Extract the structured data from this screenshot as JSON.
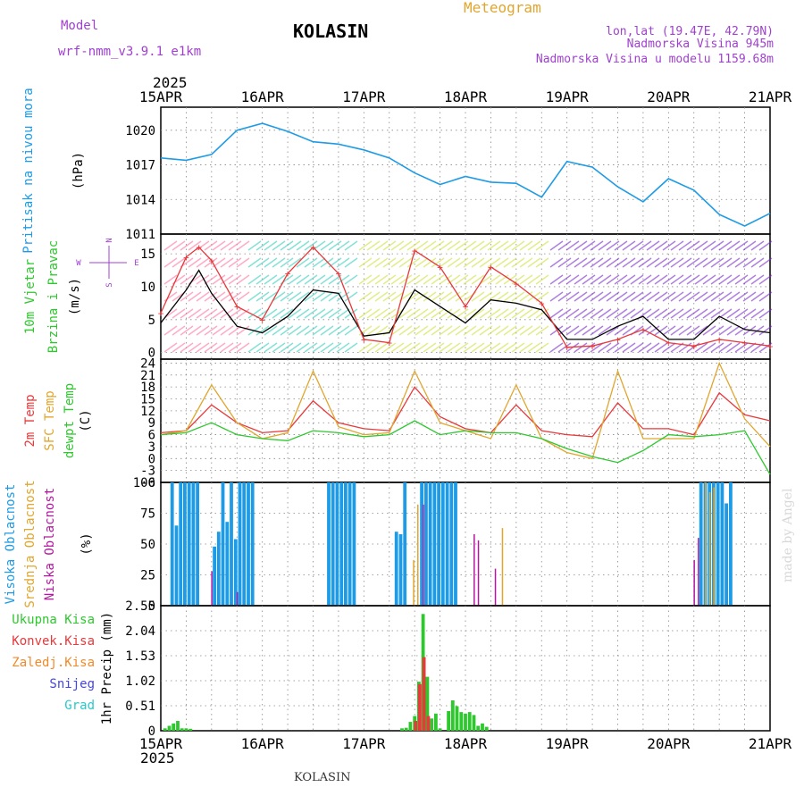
{
  "header": {
    "model_label": "Model",
    "model_name": "wrf-nmm_v3.9.1  e1km",
    "station": "KOLASIN",
    "chart_kind": "Meteogram",
    "coords": "lon,lat (19.47E, 42.79N)",
    "elev_real": "Nadmorska Visina 945m",
    "elev_model": "Nadmorska Visina u modelu 1159.68m",
    "footer_station": "KOLASIN",
    "watermark": "made by Angel"
  },
  "colors": {
    "pressure": "#1e9be6",
    "t2m": "#e8393b",
    "sfc": "#e0a62e",
    "dewpt": "#2ec82e",
    "high_cloud": "#1e9be6",
    "mid_cloud": "#e0a62e",
    "low_cloud": "#b4189e",
    "total_precip": "#2ec82e",
    "conv_precip": "#e8393b",
    "frozen": "#f08a2a",
    "snow": "#4545e0",
    "graupel": "#2ac8c8",
    "wind_speed": "#000000",
    "gust": "#e8393b",
    "purple_label": "#a040d0"
  },
  "chart_data": {
    "type": "line",
    "time_axis": {
      "year": "2025",
      "start": "2025-04-15T00:00",
      "end": "2025-04-21T00:00",
      "ticks": [
        "15APR",
        "16APR",
        "17APR",
        "18APR",
        "19APR",
        "20APR",
        "21APR"
      ]
    },
    "panels": [
      {
        "id": "pressure",
        "ylabels": [
          "Pritisak na nivou mora"
        ],
        "unit": "(hPa)",
        "ylim": [
          1011,
          1022
        ],
        "yticks": [
          1011,
          1014,
          1017,
          1020
        ],
        "series": [
          {
            "key": "pressure",
            "x": [
              "2025-04-15T00:00",
              "2025-04-15T06:00",
              "2025-04-15T12:00",
              "2025-04-15T18:00",
              "2025-04-16T00:00",
              "2025-04-16T06:00",
              "2025-04-16T12:00",
              "2025-04-16T18:00",
              "2025-04-17T00:00",
              "2025-04-17T06:00",
              "2025-04-17T12:00",
              "2025-04-17T18:00",
              "2025-04-18T00:00",
              "2025-04-18T06:00",
              "2025-04-18T12:00",
              "2025-04-18T18:00",
              "2025-04-19T00:00",
              "2025-04-19T06:00",
              "2025-04-19T12:00",
              "2025-04-19T18:00",
              "2025-04-20T00:00",
              "2025-04-20T06:00",
              "2025-04-20T12:00",
              "2025-04-20T18:00",
              "2025-04-21T00:00"
            ],
            "values": [
              1017.6,
              1017.4,
              1017.9,
              1020.0,
              1020.6,
              1019.9,
              1019.0,
              1018.8,
              1018.3,
              1017.6,
              1016.3,
              1015.3,
              1016.0,
              1015.5,
              1015.4,
              1014.2,
              1017.3,
              1016.8,
              1015.1,
              1013.8,
              1015.8,
              1014.8,
              1012.7,
              1011.7,
              1012.8
            ]
          }
        ]
      },
      {
        "id": "wind",
        "ylabels": [
          "10m Vjetar",
          "Brzina i Pravac"
        ],
        "unit": "(m/s)",
        "ylim": [
          -1,
          18
        ],
        "yticks": [
          0,
          5,
          10,
          15
        ],
        "compass": {
          "n": "N",
          "s": "S",
          "e": "E",
          "w": "W"
        },
        "series": [
          {
            "key": "wind_speed",
            "x": [
              "2025-04-15T00:00",
              "2025-04-15T06:00",
              "2025-04-15T09:00",
              "2025-04-15T12:00",
              "2025-04-15T18:00",
              "2025-04-16T00:00",
              "2025-04-16T06:00",
              "2025-04-16T12:00",
              "2025-04-16T18:00",
              "2025-04-17T00:00",
              "2025-04-17T06:00",
              "2025-04-17T12:00",
              "2025-04-17T18:00",
              "2025-04-18T00:00",
              "2025-04-18T06:00",
              "2025-04-18T12:00",
              "2025-04-18T18:00",
              "2025-04-19T00:00",
              "2025-04-19T06:00",
              "2025-04-19T12:00",
              "2025-04-19T18:00",
              "2025-04-20T00:00",
              "2025-04-20T06:00",
              "2025-04-20T12:00",
              "2025-04-20T18:00",
              "2025-04-21T00:00"
            ],
            "values": [
              4.5,
              9.5,
              12.5,
              9.0,
              4.0,
              3.0,
              5.5,
              9.5,
              9.0,
              2.5,
              3.0,
              9.5,
              7.0,
              4.5,
              8.0,
              7.5,
              6.5,
              2.0,
              2.0,
              4.0,
              5.5,
              2.0,
              2.0,
              5.5,
              3.5,
              3.0
            ]
          },
          {
            "key": "gust",
            "x": [
              "2025-04-15T00:00",
              "2025-04-15T06:00",
              "2025-04-15T09:00",
              "2025-04-15T12:00",
              "2025-04-15T18:00",
              "2025-04-16T00:00",
              "2025-04-16T06:00",
              "2025-04-16T12:00",
              "2025-04-16T18:00",
              "2025-04-17T00:00",
              "2025-04-17T06:00",
              "2025-04-17T12:00",
              "2025-04-17T18:00",
              "2025-04-18T00:00",
              "2025-04-18T06:00",
              "2025-04-18T12:00",
              "2025-04-18T18:00",
              "2025-04-19T00:00",
              "2025-04-19T06:00",
              "2025-04-19T12:00",
              "2025-04-19T18:00",
              "2025-04-20T00:00",
              "2025-04-20T06:00",
              "2025-04-20T12:00",
              "2025-04-20T18:00",
              "2025-04-21T00:00"
            ],
            "values": [
              6.0,
              14.5,
              16.0,
              14.0,
              7.0,
              5.0,
              12.0,
              16.0,
              12.0,
              2.0,
              1.5,
              15.5,
              13.0,
              7.0,
              13.0,
              10.5,
              7.5,
              0.8,
              1.0,
              2.0,
              3.5,
              1.5,
              1.0,
              2.0,
              1.5,
              1.0
            ]
          }
        ]
      },
      {
        "id": "temperature",
        "ylabels": [
          "2m Temp",
          "SFC Temp",
          "dewpt Temp"
        ],
        "unit": "(C)",
        "ylim": [
          -6,
          25
        ],
        "yticks": [
          -6,
          -3,
          0,
          3,
          6,
          9,
          12,
          15,
          18,
          21,
          24
        ],
        "series": [
          {
            "key": "t2m",
            "x": [
              "2025-04-15T00:00",
              "2025-04-15T06:00",
              "2025-04-15T12:00",
              "2025-04-15T18:00",
              "2025-04-16T00:00",
              "2025-04-16T06:00",
              "2025-04-16T12:00",
              "2025-04-16T18:00",
              "2025-04-17T00:00",
              "2025-04-17T06:00",
              "2025-04-17T12:00",
              "2025-04-17T18:00",
              "2025-04-18T00:00",
              "2025-04-18T06:00",
              "2025-04-18T12:00",
              "2025-04-18T18:00",
              "2025-04-19T00:00",
              "2025-04-19T06:00",
              "2025-04-19T12:00",
              "2025-04-19T18:00",
              "2025-04-20T00:00",
              "2025-04-20T06:00",
              "2025-04-20T12:00",
              "2025-04-20T18:00",
              "2025-04-21T00:00"
            ],
            "values": [
              6.5,
              7.0,
              13.5,
              9.0,
              6.5,
              7.0,
              14.5,
              9.0,
              7.5,
              7.0,
              18.0,
              10.5,
              7.5,
              6.5,
              13.5,
              7.0,
              6.0,
              5.5,
              14.0,
              7.5,
              7.5,
              6.0,
              16.5,
              11.0,
              9.5
            ]
          },
          {
            "key": "sfc",
            "x": [
              "2025-04-15T00:00",
              "2025-04-15T06:00",
              "2025-04-15T12:00",
              "2025-04-15T18:00",
              "2025-04-16T00:00",
              "2025-04-16T06:00",
              "2025-04-16T12:00",
              "2025-04-16T18:00",
              "2025-04-17T00:00",
              "2025-04-17T06:00",
              "2025-04-17T12:00",
              "2025-04-17T18:00",
              "2025-04-18T00:00",
              "2025-04-18T06:00",
              "2025-04-18T12:00",
              "2025-04-18T18:00",
              "2025-04-19T00:00",
              "2025-04-19T06:00",
              "2025-04-19T12:00",
              "2025-04-19T18:00",
              "2025-04-20T00:00",
              "2025-04-20T06:00",
              "2025-04-20T12:00",
              "2025-04-20T18:00",
              "2025-04-21T00:00"
            ],
            "values": [
              6.0,
              7.0,
              18.5,
              9.0,
              5.0,
              6.5,
              22.0,
              8.0,
              6.0,
              6.5,
              22.0,
              9.0,
              7.0,
              5.0,
              18.5,
              5.0,
              1.5,
              0.0,
              22.0,
              5.0,
              5.0,
              5.0,
              24.0,
              10.0,
              3.0
            ]
          },
          {
            "key": "dewpt",
            "x": [
              "2025-04-15T00:00",
              "2025-04-15T06:00",
              "2025-04-15T12:00",
              "2025-04-15T18:00",
              "2025-04-16T00:00",
              "2025-04-16T06:00",
              "2025-04-16T12:00",
              "2025-04-16T18:00",
              "2025-04-17T00:00",
              "2025-04-17T06:00",
              "2025-04-17T12:00",
              "2025-04-17T18:00",
              "2025-04-18T00:00",
              "2025-04-18T06:00",
              "2025-04-18T12:00",
              "2025-04-18T18:00",
              "2025-04-19T00:00",
              "2025-04-19T06:00",
              "2025-04-19T12:00",
              "2025-04-19T18:00",
              "2025-04-20T00:00",
              "2025-04-20T06:00",
              "2025-04-20T12:00",
              "2025-04-20T18:00",
              "2025-04-21T00:00"
            ],
            "values": [
              6.0,
              6.5,
              9.0,
              6.0,
              5.0,
              4.5,
              7.0,
              6.5,
              5.5,
              6.0,
              9.5,
              6.0,
              7.0,
              6.5,
              6.5,
              5.0,
              2.5,
              0.5,
              -1.0,
              2.0,
              6.0,
              5.5,
              6.0,
              7.0,
              -4.0
            ]
          }
        ]
      },
      {
        "id": "cloud",
        "ylabels": [
          "Visoka Oblacnost",
          "Srednja Oblacnost",
          "Niska Oblacnost"
        ],
        "unit": "(%)",
        "ylim": [
          0,
          100
        ],
        "yticks": [
          0,
          25,
          50,
          75,
          100
        ],
        "bars": [
          {
            "key": "high_cloud",
            "x": [
              "2025-04-15T03:00",
              "2025-04-15T04:00",
              "2025-04-15T05:00",
              "2025-04-15T06:00",
              "2025-04-15T07:00",
              "2025-04-15T08:00",
              "2025-04-15T09:00",
              "2025-04-15T13:00",
              "2025-04-15T14:00",
              "2025-04-15T15:00",
              "2025-04-15T16:00",
              "2025-04-15T17:00",
              "2025-04-15T18:00",
              "2025-04-15T19:00",
              "2025-04-15T20:00",
              "2025-04-15T21:00",
              "2025-04-15T22:00",
              "2025-04-16T16:00",
              "2025-04-16T17:00",
              "2025-04-16T18:00",
              "2025-04-16T19:00",
              "2025-04-16T20:00",
              "2025-04-16T21:00",
              "2025-04-16T22:00",
              "2025-04-17T08:00",
              "2025-04-17T09:00",
              "2025-04-17T10:00",
              "2025-04-17T14:00",
              "2025-04-17T15:00",
              "2025-04-17T16:00",
              "2025-04-17T17:00",
              "2025-04-17T18:00",
              "2025-04-17T19:00",
              "2025-04-17T20:00",
              "2025-04-17T21:00",
              "2025-04-17T22:00",
              "2025-04-20T08:00",
              "2025-04-20T09:00",
              "2025-04-20T10:00",
              "2025-04-20T11:00",
              "2025-04-20T12:00",
              "2025-04-20T13:00",
              "2025-04-20T14:00",
              "2025-04-20T15:00"
            ],
            "values": [
              100,
              65,
              100,
              100,
              100,
              100,
              100,
              48,
              60,
              100,
              68,
              100,
              54,
              100,
              100,
              100,
              100,
              100,
              100,
              100,
              100,
              100,
              100,
              100,
              60,
              58,
              100,
              100,
              100,
              100,
              100,
              100,
              100,
              100,
              100,
              100,
              100,
              100,
              100,
              100,
              100,
              100,
              83,
              100
            ]
          },
          {
            "key": "mid_cloud",
            "x": [
              "2025-04-17T12:00",
              "2025-04-17T13:00",
              "2025-04-18T09:00",
              "2025-04-20T09:00",
              "2025-04-20T10:00",
              "2025-04-20T11:00"
            ],
            "values": [
              37,
              82,
              63,
              100,
              92,
              96
            ]
          },
          {
            "key": "low_cloud",
            "x": [
              "2025-04-15T12:00",
              "2025-04-15T18:00",
              "2025-04-17T14:00",
              "2025-04-18T02:00",
              "2025-04-18T03:00",
              "2025-04-18T07:00",
              "2025-04-20T06:00",
              "2025-04-20T07:00"
            ],
            "values": [
              28,
              11,
              82,
              58,
              53,
              30,
              37,
              55
            ]
          }
        ]
      },
      {
        "id": "precip",
        "ylabels": [
          "1hr Precip (mm)"
        ],
        "legend": [
          "Ukupna Kisa",
          "Konvek.Kisa",
          "Zaledj.Kisa",
          "Snijeg",
          "Grad"
        ],
        "ylim": [
          0,
          2.55
        ],
        "yticks": [
          0,
          0.51,
          1.02,
          1.53,
          2.04,
          2.55
        ],
        "bars": [
          {
            "key": "total_precip",
            "x": [
              "2025-04-15T01:00",
              "2025-04-15T02:00",
              "2025-04-15T03:00",
              "2025-04-15T04:00",
              "2025-04-15T05:00",
              "2025-04-15T06:00",
              "2025-04-15T07:00",
              "2025-04-17T09:00",
              "2025-04-17T10:00",
              "2025-04-17T11:00",
              "2025-04-17T12:00",
              "2025-04-17T13:00",
              "2025-04-17T14:00",
              "2025-04-17T15:00",
              "2025-04-17T16:00",
              "2025-04-17T17:00",
              "2025-04-17T18:00",
              "2025-04-17T20:00",
              "2025-04-17T21:00",
              "2025-04-17T22:00",
              "2025-04-17T23:00",
              "2025-04-18T00:00",
              "2025-04-18T01:00",
              "2025-04-18T02:00",
              "2025-04-18T03:00",
              "2025-04-18T04:00",
              "2025-04-18T05:00"
            ],
            "values": [
              0.05,
              0.1,
              0.15,
              0.2,
              0.05,
              0.05,
              0.04,
              0.05,
              0.06,
              0.18,
              0.3,
              1.0,
              2.38,
              1.1,
              0.25,
              0.35,
              0.05,
              0.4,
              0.62,
              0.5,
              0.38,
              0.35,
              0.38,
              0.32,
              0.1,
              0.15,
              0.08
            ]
          },
          {
            "key": "conv_precip",
            "x": [
              "2025-04-17T12:00",
              "2025-04-17T13:00",
              "2025-04-17T14:00",
              "2025-04-17T15:00"
            ],
            "values": [
              0.2,
              0.95,
              1.5,
              0.3
            ]
          }
        ]
      }
    ]
  }
}
